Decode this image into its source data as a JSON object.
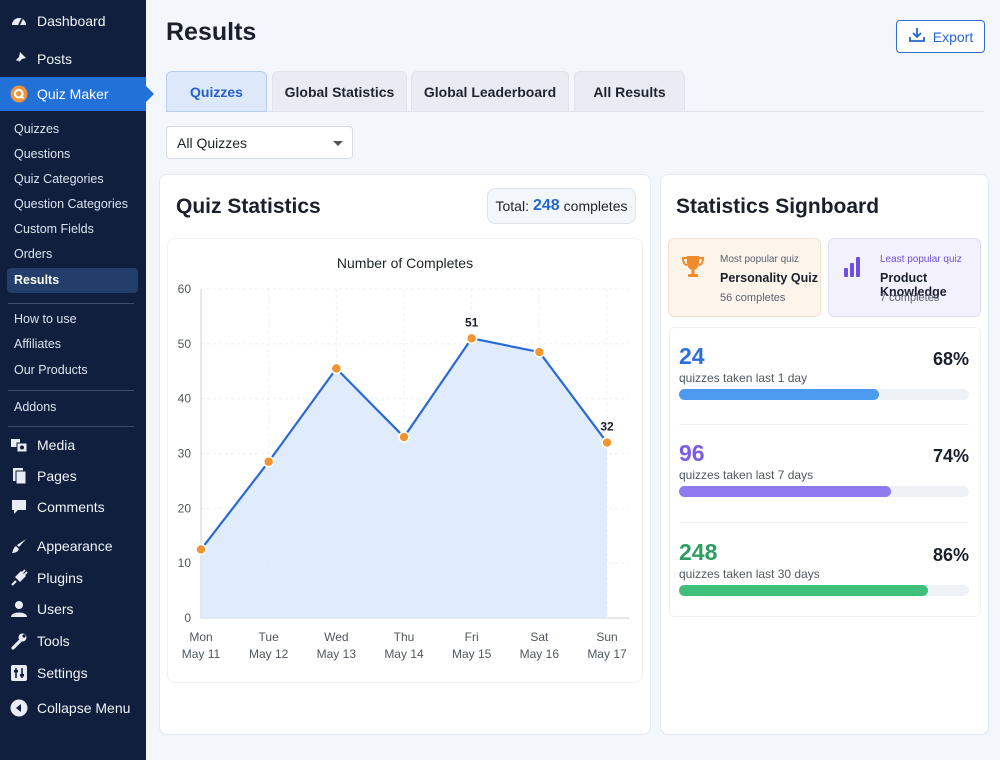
{
  "sidebar": {
    "menu": [
      {
        "label": "Dashboard",
        "icon": "dashboard-icon"
      },
      {
        "label": "Posts",
        "icon": "pin-icon"
      },
      {
        "label": "Quiz Maker",
        "icon": "quiz-maker-icon"
      },
      {
        "label": "Media",
        "icon": "media-icon"
      },
      {
        "label": "Pages",
        "icon": "pages-icon"
      },
      {
        "label": "Comments",
        "icon": "comments-icon"
      },
      {
        "label": "Appearance",
        "icon": "brush-icon"
      },
      {
        "label": "Plugins",
        "icon": "plug-icon"
      },
      {
        "label": "Users",
        "icon": "user-icon"
      },
      {
        "label": "Tools",
        "icon": "wrench-icon"
      },
      {
        "label": "Settings",
        "icon": "settings-icon"
      },
      {
        "label": "Collapse Menu",
        "icon": "collapse-icon"
      }
    ],
    "submenu": [
      "Quizzes",
      "Questions",
      "Quiz Categories",
      "Question Categories",
      "Custom Fields",
      "Orders",
      "Results"
    ],
    "submenu2": [
      "How to use",
      "Affiliates",
      "Our Products"
    ],
    "addons": "Addons"
  },
  "header": {
    "title": "Results",
    "export_label": "Export"
  },
  "tabs": [
    {
      "label": "Quizzes"
    },
    {
      "label": "Global Statistics"
    },
    {
      "label": "Global Leaderboard"
    },
    {
      "label": "All Results"
    }
  ],
  "filter": {
    "selected": "All Quizzes"
  },
  "quiz_stats": {
    "title": "Quiz Statistics",
    "total_prefix": "Total:",
    "total_value": "248",
    "total_suffix": "completes"
  },
  "chart_data": {
    "type": "line",
    "title": "Number of Completes",
    "categories": [
      "Mon",
      "Tue",
      "Wed",
      "Thu",
      "Fri",
      "Sat",
      "Sun"
    ],
    "dates": [
      "May 11",
      "May 12",
      "May 13",
      "May 14",
      "May 15",
      "May 16",
      "May 17"
    ],
    "values": [
      12.5,
      28.5,
      45.5,
      33,
      51,
      48.5,
      32
    ],
    "data_labels": [
      {
        "index": 4,
        "text": "51"
      },
      {
        "index": 6,
        "text": "32"
      }
    ],
    "ylim": [
      0,
      60
    ],
    "yticks": [
      0,
      10,
      20,
      30,
      40,
      50,
      60
    ],
    "grid": true,
    "line_color": "#2a6ad6",
    "point_color": "#f29431",
    "area_color": "#dbe8fa"
  },
  "signboard": {
    "title": "Statistics Signboard",
    "most_popular": {
      "caption": "Most popular quiz",
      "name": "Personality Quiz",
      "count": "56 completes"
    },
    "least_popular": {
      "caption": "Least popular quiz",
      "name": "Product Knowledge",
      "count": "7 completes"
    },
    "stats": [
      {
        "value": "24",
        "label": "quizzes taken last 1 day",
        "percent": "68%",
        "fill": 0.69,
        "color": "#2b6ee0",
        "bar": "#4d9bf0"
      },
      {
        "value": "96",
        "label": "quizzes taken last 7 days",
        "percent": "74%",
        "fill": 0.73,
        "color": "#7b5ce6",
        "bar": "#8f79ef"
      },
      {
        "value": "248",
        "label": "quizzes taken last 30 days",
        "percent": "86%",
        "fill": 0.86,
        "color": "#2e9d63",
        "bar": "#3ec07a"
      }
    ]
  }
}
